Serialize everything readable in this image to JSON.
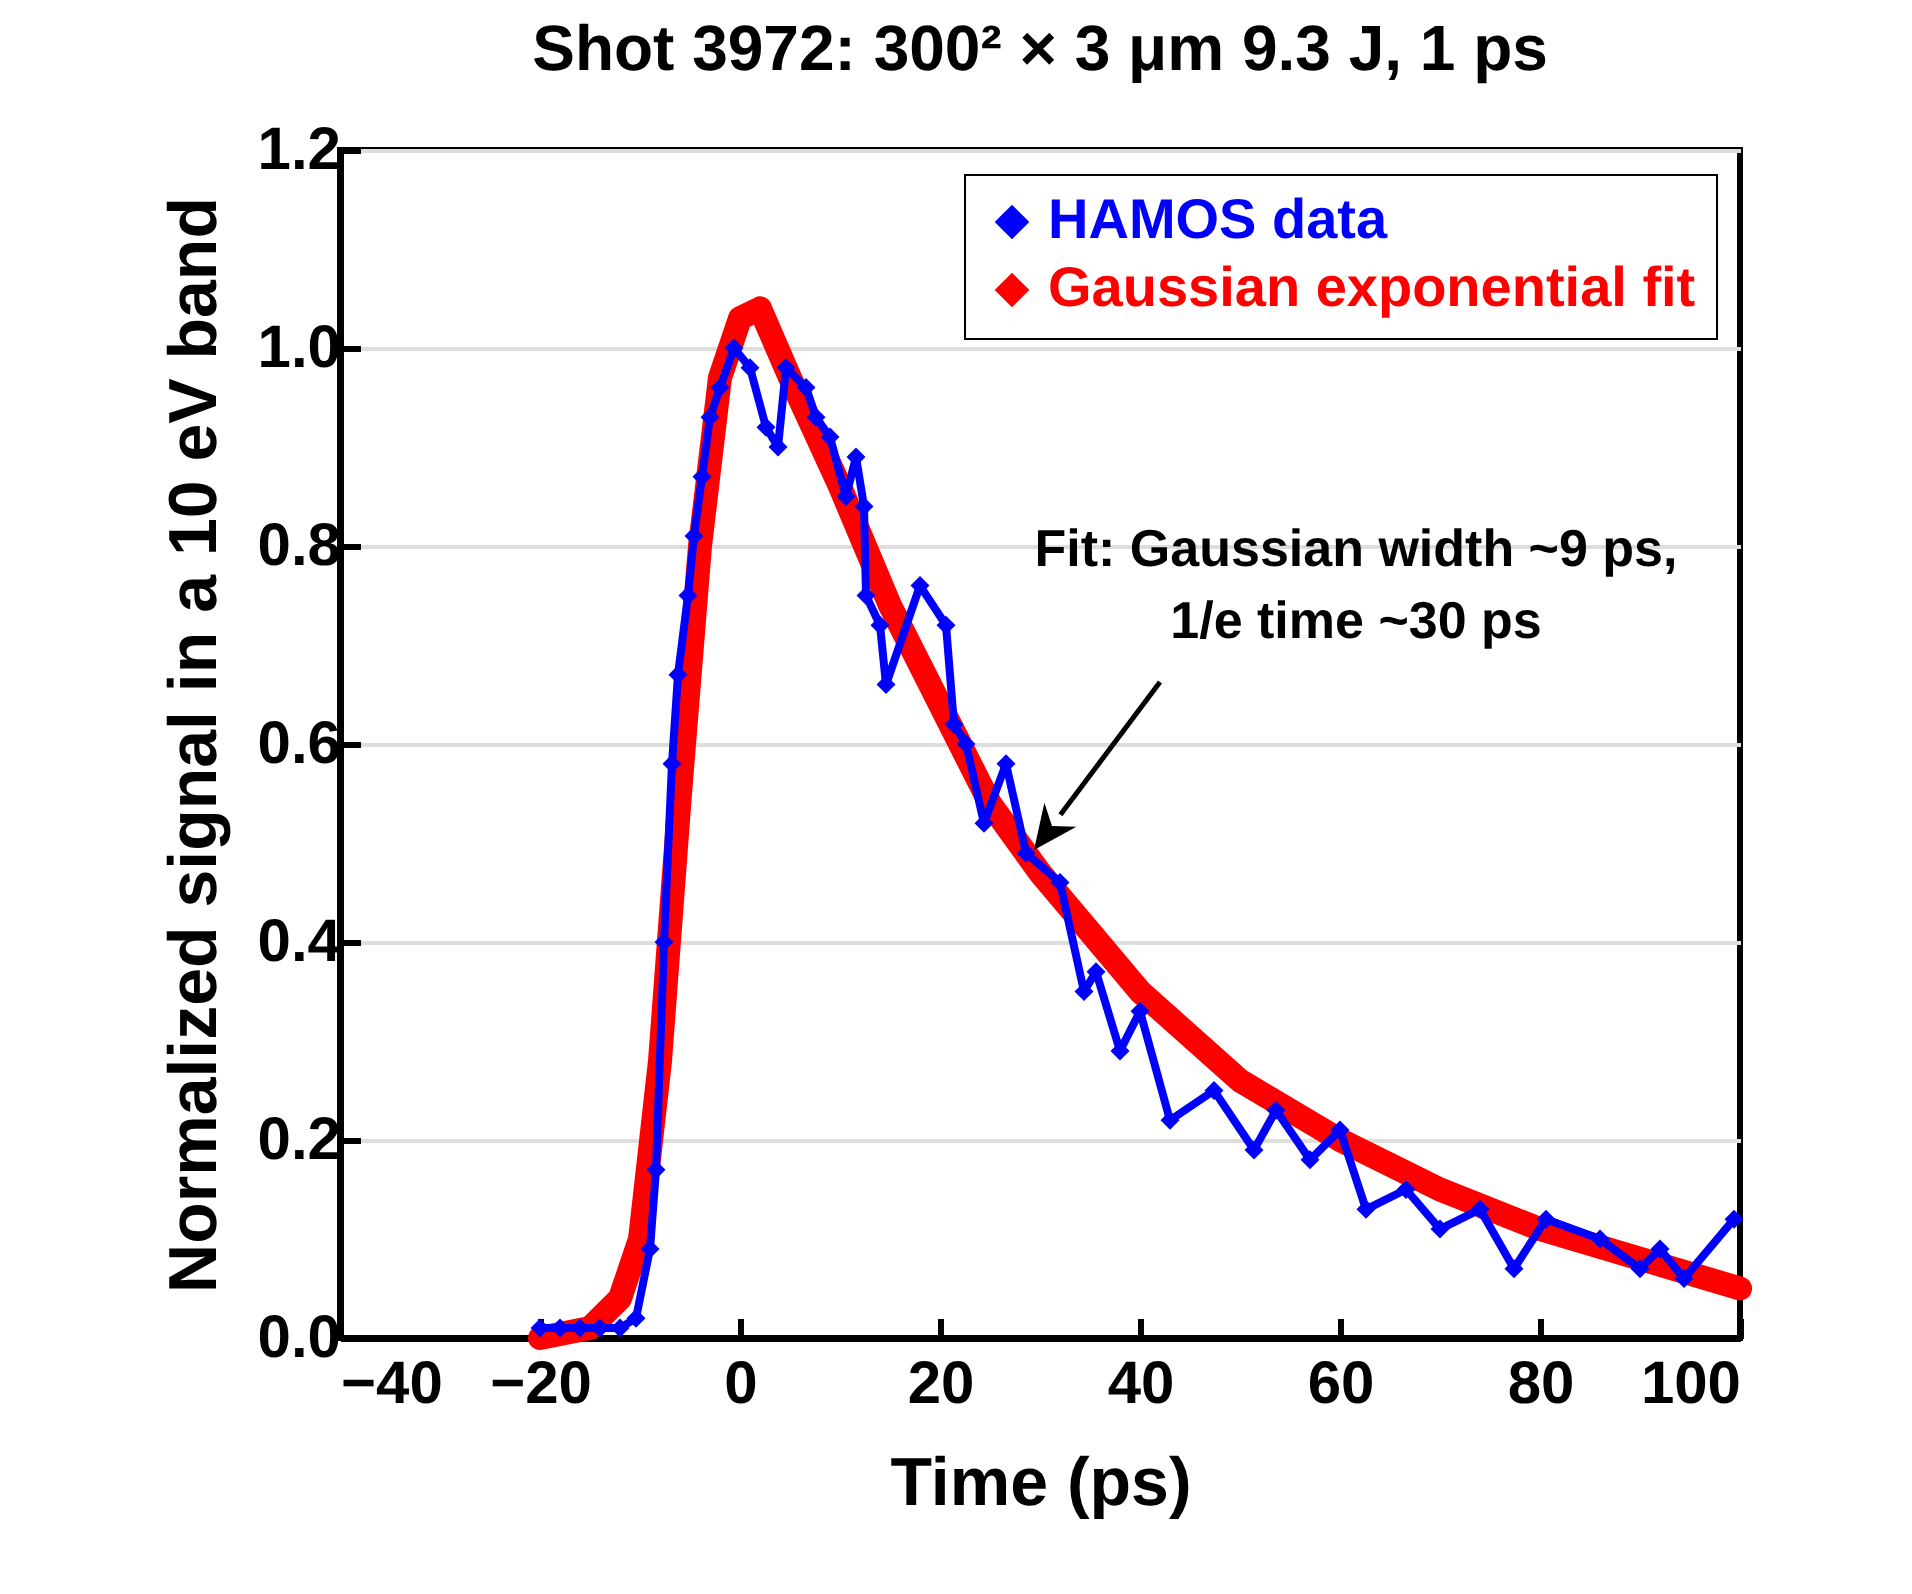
{
  "chart_data": {
    "type": "line",
    "title": "Shot 3972: 300² × 3 μm 9.3 J, 1 ps",
    "xlabel": "Time (ps)",
    "ylabel": "Normalized signal in a 10 eV band",
    "xlim": [
      -40,
      100
    ],
    "xticks": [
      {
        "value": -40,
        "label": "−40"
      },
      {
        "value": -20,
        "label": "−20"
      },
      0,
      20,
      40,
      60,
      80,
      100
    ],
    "ylim": [
      0,
      1.2
    ],
    "yticks": [
      {
        "value": 0,
        "label": "0.0"
      },
      0.2,
      0.4,
      0.6,
      0.8,
      {
        "value": 1,
        "label": "1.0"
      },
      1.2
    ],
    "grid": "y",
    "legend": "top right",
    "marker": "diamond",
    "series": [
      {
        "name": "HAMOS data",
        "color": "#0000ff",
        "x": [
          -20,
          -18,
          -16,
          -14,
          -12,
          -10.4,
          -9,
          -8.4,
          -7.6,
          -6.8,
          -6.2,
          -5.2,
          -4.6,
          -3.8,
          -3,
          -2,
          -0.6,
          1,
          2.6,
          3.8,
          4.6,
          6.6,
          7.6,
          9,
          10.6,
          11.6,
          12.4,
          12.6,
          14,
          14.6,
          18,
          20.6,
          21.4,
          22.6,
          24.4,
          26.6,
          28.6,
          32,
          34.4,
          35.6,
          38,
          40,
          43,
          47.4,
          51.4,
          53.6,
          57,
          60,
          62.6,
          66.6,
          70,
          74,
          77.4,
          80.6,
          86,
          90,
          92,
          94.4,
          99.4
        ],
        "values": [
          0.01,
          0.01,
          0.01,
          0.01,
          0.01,
          0.02,
          0.09,
          0.17,
          0.4,
          0.58,
          0.67,
          0.75,
          0.81,
          0.87,
          0.93,
          0.96,
          1.0,
          0.98,
          0.92,
          0.9,
          0.98,
          0.96,
          0.93,
          0.91,
          0.85,
          0.89,
          0.84,
          0.75,
          0.72,
          0.66,
          0.76,
          0.72,
          0.62,
          0.6,
          0.52,
          0.58,
          0.49,
          0.46,
          0.35,
          0.37,
          0.29,
          0.33,
          0.22,
          0.25,
          0.19,
          0.23,
          0.18,
          0.21,
          0.13,
          0.15,
          0.11,
          0.13,
          0.07,
          0.12,
          0.1,
          0.07,
          0.09,
          0.06,
          0.12
        ]
      },
      {
        "name": "Gaussian exponential fit",
        "color": "#ff0000",
        "x": [
          -20,
          -15,
          -12,
          -10,
          -8,
          -6,
          -4,
          -2,
          0,
          2,
          5,
          10,
          15,
          20,
          25,
          30,
          35,
          40,
          50,
          60,
          70,
          80,
          90,
          100
        ],
        "values": [
          0,
          0.01,
          0.04,
          0.1,
          0.28,
          0.55,
          0.8,
          0.97,
          1.03,
          1.04,
          0.97,
          0.86,
          0.74,
          0.64,
          0.54,
          0.47,
          0.41,
          0.35,
          0.26,
          0.2,
          0.15,
          0.11,
          0.08,
          0.05
        ]
      }
    ],
    "annotations": [
      "Fit: Gaussian width ~9 ps,\n1/e time ~30 ps"
    ]
  }
}
